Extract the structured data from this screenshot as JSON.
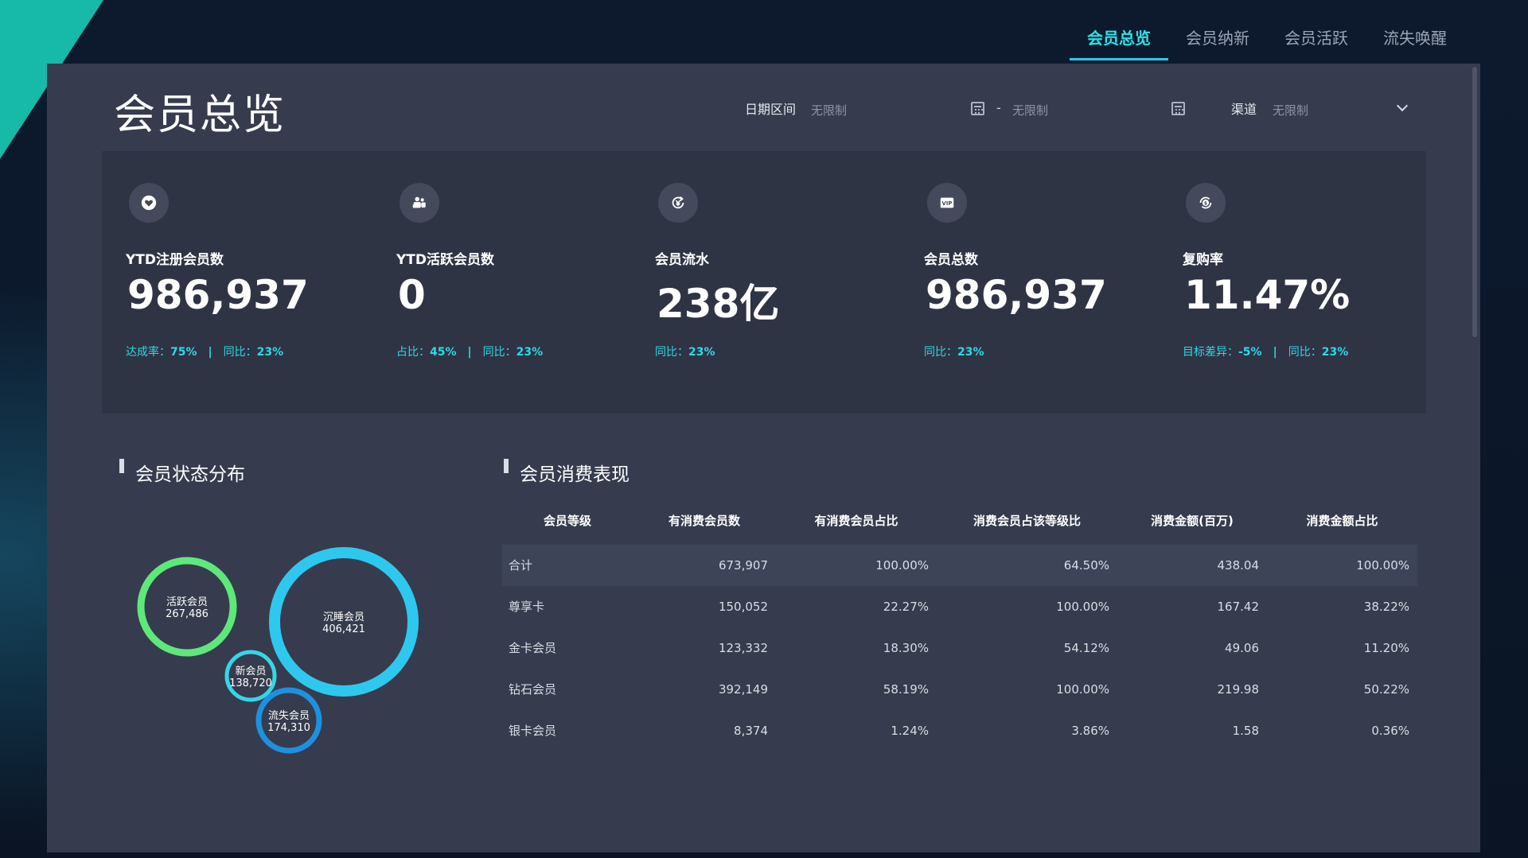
{
  "nav": {
    "tabs": [
      {
        "label": "会员总览",
        "active": true
      },
      {
        "label": "会员纳新",
        "active": false
      },
      {
        "label": "会员活跃",
        "active": false
      },
      {
        "label": "流失唤醒",
        "active": false
      }
    ]
  },
  "page": {
    "title": "会员总览"
  },
  "filters": {
    "date_label": "日期区间",
    "date_start": "无限制",
    "date_separator": "-",
    "date_end": "无限制",
    "channel_label": "渠道",
    "channel_value": "无限制"
  },
  "kpis": [
    {
      "label": "YTD注册会员数",
      "value": "986,937",
      "icon": "heart-icon",
      "sub": [
        {
          "k": "达成率：",
          "v": "75%"
        },
        {
          "k": "同比：",
          "v": "23%"
        }
      ]
    },
    {
      "label": "YTD活跃会员数",
      "value": "0",
      "icon": "users-icon",
      "sub": [
        {
          "k": "占比：",
          "v": "45%"
        },
        {
          "k": "同比：",
          "v": "23%"
        }
      ]
    },
    {
      "label": "会员流水",
      "value": "238亿",
      "icon": "yuan-cycle-icon",
      "sub": [
        {
          "k": "同比：",
          "v": "23%"
        }
      ]
    },
    {
      "label": "会员总数",
      "value": "986,937",
      "icon": "vip-icon",
      "sub": [
        {
          "k": "同比：",
          "v": "23%"
        }
      ]
    },
    {
      "label": "复购率",
      "value": "11.47%",
      "icon": "dollar-coin-icon",
      "sub": [
        {
          "k": "目标差异：",
          "v": "-5%"
        },
        {
          "k": "同比：",
          "v": "23%"
        }
      ]
    }
  ],
  "status_section": {
    "title": "会员状态分布"
  },
  "chart_data": {
    "type": "bubble",
    "series": [
      {
        "name": "活跃会员",
        "value": 267486,
        "value_label": "267,486",
        "color": "#5ee87a"
      },
      {
        "name": "沉睡会员",
        "value": 406421,
        "value_label": "406,421",
        "color": "#2ec8ee"
      },
      {
        "name": "新会员",
        "value": 138720,
        "value_label": "138,720",
        "color": "#35d6e8"
      },
      {
        "name": "流失会员",
        "value": 174310,
        "value_label": "174,310",
        "color": "#1e90e0"
      }
    ]
  },
  "consumption_section": {
    "title": "会员消费表现",
    "columns": [
      "会员等级",
      "有消费会员数",
      "有消费会员占比",
      "消费会员占该等级比",
      "消费金额(百万)",
      "消费金额占比"
    ],
    "rows": [
      [
        "合计",
        "673,907",
        "100.00%",
        "64.50%",
        "438.04",
        "100.00%"
      ],
      [
        "尊享卡",
        "150,052",
        "22.27%",
        "100.00%",
        "167.42",
        "38.22%"
      ],
      [
        "金卡会员",
        "123,332",
        "18.30%",
        "54.12%",
        "49.06",
        "11.20%"
      ],
      [
        "钻石会员",
        "392,149",
        "58.19%",
        "100.00%",
        "219.98",
        "50.22%"
      ],
      [
        "银卡会员",
        "8,374",
        "1.24%",
        "3.86%",
        "1.58",
        "0.36%"
      ]
    ]
  }
}
